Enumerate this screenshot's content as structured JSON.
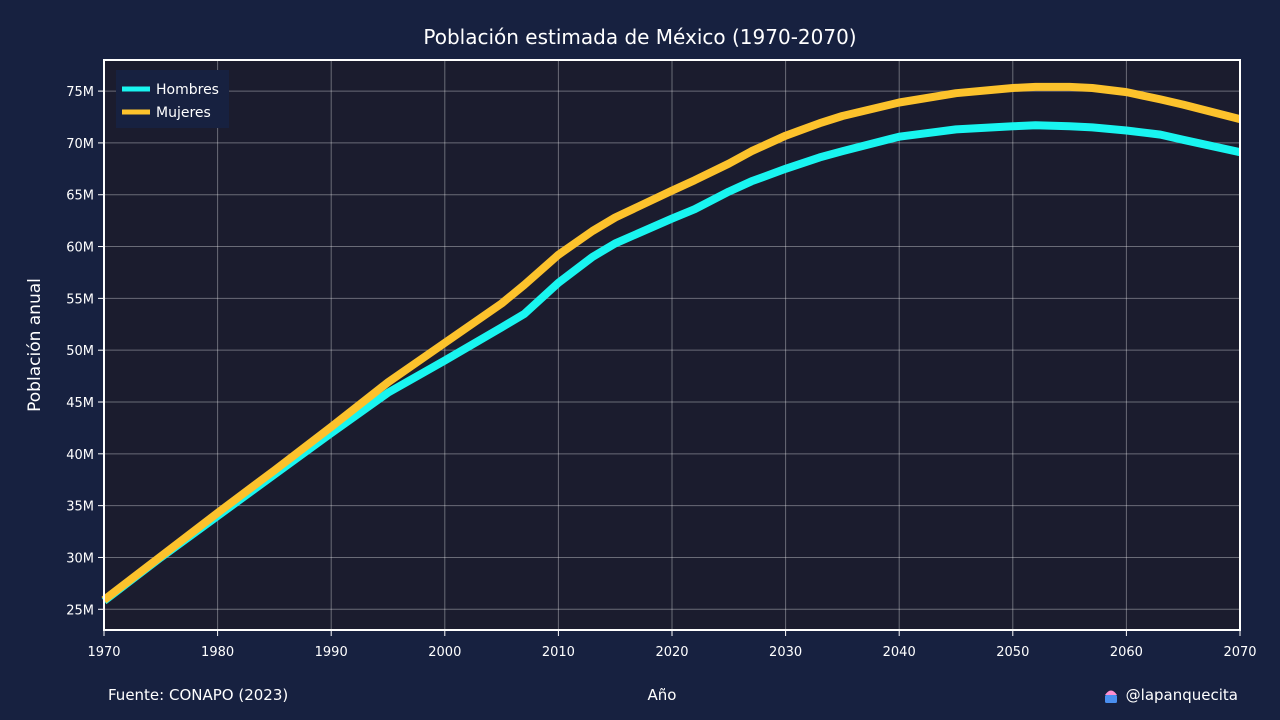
{
  "source": "Fuente: CONAPO (2023)",
  "credit": "@lapanquecita",
  "chart_data": {
    "type": "line",
    "title": "Población estimada de México (1970-2070)",
    "xlabel": "Año",
    "ylabel": "Población anual",
    "xlim": [
      1970,
      2070
    ],
    "ylim": [
      23000000,
      78000000
    ],
    "x_ticks": [
      1970,
      1980,
      1990,
      2000,
      2010,
      2020,
      2030,
      2040,
      2050,
      2060,
      2070
    ],
    "y_ticks": [
      25000000,
      30000000,
      35000000,
      40000000,
      45000000,
      50000000,
      55000000,
      60000000,
      65000000,
      70000000,
      75000000
    ],
    "y_tick_labels": [
      "25M",
      "30M",
      "35M",
      "40M",
      "45M",
      "50M",
      "55M",
      "60M",
      "65M",
      "70M",
      "75M"
    ],
    "grid": true,
    "legend_position": "top-left",
    "x": [
      1970,
      1975,
      1980,
      1985,
      1990,
      1995,
      2000,
      2005,
      2007,
      2010,
      2013,
      2015,
      2020,
      2022,
      2025,
      2027,
      2030,
      2033,
      2035,
      2040,
      2045,
      2050,
      2052,
      2055,
      2057,
      2060,
      2063,
      2065,
      2070
    ],
    "series": [
      {
        "name": "Hombres",
        "color": "#19f5f0",
        "values": [
          25800000,
          30000000,
          34000000,
          38000000,
          42000000,
          45900000,
          49000000,
          52200000,
          53500000,
          56500000,
          59000000,
          60300000,
          62700000,
          63600000,
          65300000,
          66300000,
          67500000,
          68600000,
          69200000,
          70600000,
          71300000,
          71600000,
          71700000,
          71600000,
          71500000,
          71200000,
          70800000,
          70300000,
          69100000
        ]
      },
      {
        "name": "Mujeres",
        "color": "#fcc22c",
        "values": [
          25900000,
          30100000,
          34300000,
          38400000,
          42600000,
          46900000,
          50700000,
          54500000,
          56300000,
          59200000,
          61500000,
          62800000,
          65400000,
          66400000,
          68000000,
          69200000,
          70700000,
          71900000,
          72600000,
          73900000,
          74800000,
          75300000,
          75400000,
          75400000,
          75300000,
          74900000,
          74200000,
          73700000,
          72300000
        ]
      }
    ]
  }
}
